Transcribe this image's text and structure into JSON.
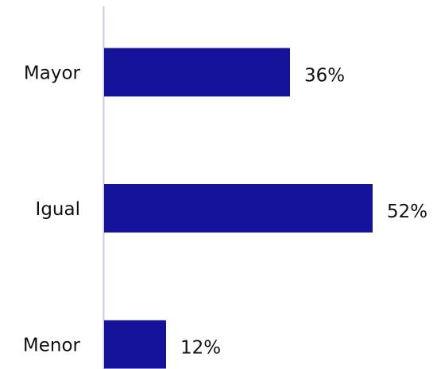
{
  "chart_data": {
    "type": "bar",
    "orientation": "horizontal",
    "categories": [
      "Mayor",
      "Igual",
      "Menor"
    ],
    "values": [
      36,
      52,
      12
    ],
    "value_labels": [
      "36%",
      "52%",
      "12%"
    ],
    "color": "#15139a"
  }
}
